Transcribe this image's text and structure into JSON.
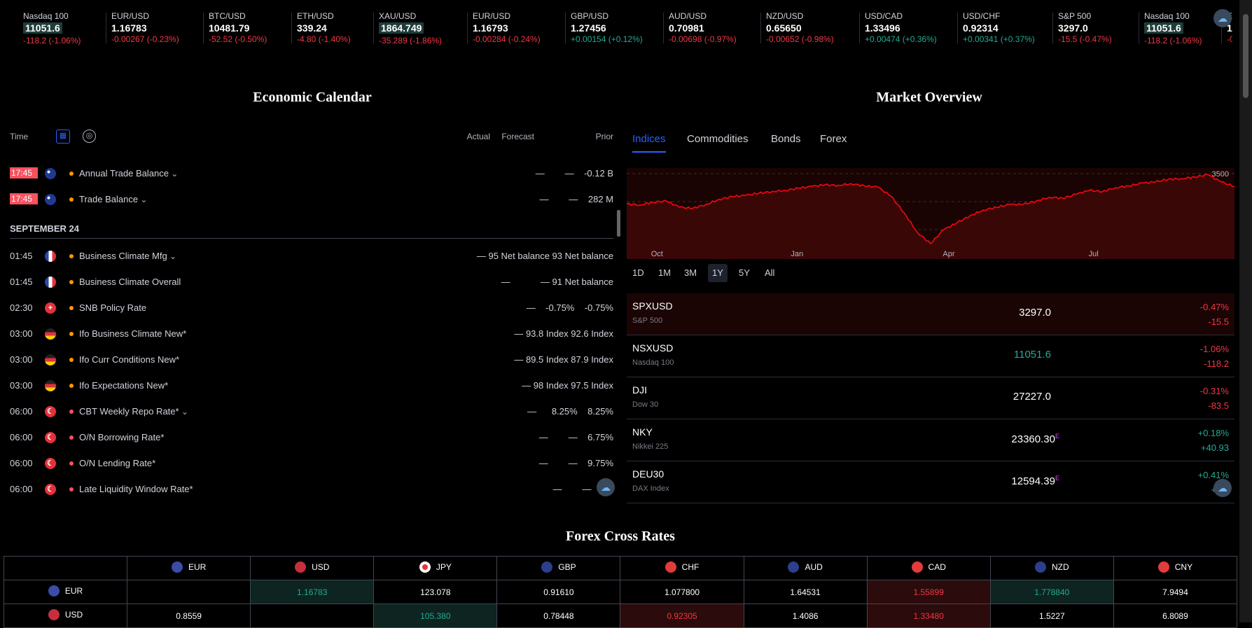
{
  "ticker": [
    {
      "sym": "Nasdaq 100",
      "price": "11051.6",
      "chg": "-118.2 (-1.06%)",
      "dir": "neg",
      "hl": true
    },
    {
      "sym": "EUR/USD",
      "price": "1.16783",
      "chg": "-0.00267 (-0.23%)",
      "dir": "neg",
      "hl": false
    },
    {
      "sym": "BTC/USD",
      "price": "10481.79",
      "chg": "-52.52 (-0.50%)",
      "dir": "neg",
      "hl": false
    },
    {
      "sym": "ETH/USD",
      "price": "339.24",
      "chg": "-4.80 (-1.40%)",
      "dir": "neg",
      "hl": false
    },
    {
      "sym": "XAU/USD",
      "price": "1864.749",
      "chg": "-35.289 (-1.86%)",
      "dir": "neg",
      "hl": true
    },
    {
      "sym": "EUR/USD",
      "price": "1.16793",
      "chg": "-0.00284 (-0.24%)",
      "dir": "neg",
      "hl": false
    },
    {
      "sym": "GBP/USD",
      "price": "1.27456",
      "chg": "+0.00154 (+0.12%)",
      "dir": "pos",
      "hl": false
    },
    {
      "sym": "AUD/USD",
      "price": "0.70981",
      "chg": "-0.00698 (-0.97%)",
      "dir": "neg",
      "hl": false
    },
    {
      "sym": "NZD/USD",
      "price": "0.65650",
      "chg": "-0.00652 (-0.98%)",
      "dir": "neg",
      "hl": false
    },
    {
      "sym": "USD/CAD",
      "price": "1.33496",
      "chg": "+0.00474 (+0.36%)",
      "dir": "pos",
      "hl": false
    },
    {
      "sym": "USD/CHF",
      "price": "0.92314",
      "chg": "+0.00341 (+0.37%)",
      "dir": "pos",
      "hl": false
    },
    {
      "sym": "S&P 500",
      "price": "3297.0",
      "chg": "-15.5 (-0.47%)",
      "dir": "neg",
      "hl": false
    },
    {
      "sym": "Nasdaq 100",
      "price": "11051.6",
      "chg": "-118.2 (-1.06%)",
      "dir": "neg",
      "hl": true
    },
    {
      "sym": "EU",
      "price": "1.",
      "chg": "-0.",
      "dir": "neg",
      "hl": false
    }
  ],
  "economic_calendar": {
    "title": "Economic Calendar",
    "col_time": "Time",
    "col_actual": "Actual",
    "col_forecast": "Forecast",
    "col_prior": "Prior",
    "rows_today": [
      {
        "time": "17:45",
        "flag": "au",
        "title": "Annual Trade Balance",
        "chev": true,
        "vals": "—        —    -0.12 B"
      },
      {
        "time": "17:45",
        "flag": "au",
        "title": "Trade Balance",
        "chev": true,
        "vals": "—        —    282 M"
      }
    ],
    "date_label": "SEPTEMBER 24",
    "rows": [
      {
        "time": "01:45",
        "flag": "fr",
        "title": "Business Climate Mfg",
        "chev": true,
        "vals": "— 95 Net balance 93 Net balance"
      },
      {
        "time": "01:45",
        "flag": "fr",
        "title": "Business Climate Overall",
        "chev": false,
        "vals": "—            — 91 Net balance"
      },
      {
        "time": "02:30",
        "flag": "ch",
        "title": "SNB Policy Rate",
        "chev": false,
        "vals": "—    -0.75%    -0.75%"
      },
      {
        "time": "03:00",
        "flag": "de",
        "title": "Ifo Business Climate New*",
        "chev": false,
        "vals": "— 93.8 Index 92.6 Index"
      },
      {
        "time": "03:00",
        "flag": "de",
        "title": "Ifo Curr Conditions New*",
        "chev": false,
        "vals": "— 89.5 Index 87.9 Index"
      },
      {
        "time": "03:00",
        "flag": "de",
        "title": "Ifo Expectations New*",
        "chev": false,
        "vals": "— 98 Index 97.5 Index"
      },
      {
        "time": "06:00",
        "flag": "tr",
        "title": "CBT Weekly Repo Rate*",
        "chev": true,
        "vals": "—      8.25%    8.25%"
      },
      {
        "time": "06:00",
        "flag": "tr",
        "title": "O/N Borrowing Rate*",
        "chev": false,
        "vals": "—        —    6.75%"
      },
      {
        "time": "06:00",
        "flag": "tr",
        "title": "O/N Lending Rate*",
        "chev": false,
        "vals": "—        —    9.75%"
      },
      {
        "time": "06:00",
        "flag": "tr",
        "title": "Late Liquidity Window Rate*",
        "chev": false,
        "vals": "—        —    11."
      }
    ]
  },
  "market_overview": {
    "title": "Market Overview",
    "tabs": [
      "Indices",
      "Commodities",
      "Bonds",
      "Forex"
    ],
    "active_tab": "Indices",
    "chart_data": {
      "type": "area",
      "x_ticks": [
        "Oct",
        "Jan",
        "Apr",
        "Jul"
      ],
      "y_ticks": [
        3500,
        3000,
        2500
      ],
      "ylim": [
        2200,
        3600
      ],
      "values": [
        2960,
        2940,
        2990,
        3010,
        2900,
        2880,
        2950,
        3040,
        3090,
        3110,
        3150,
        3180,
        3200,
        3240,
        3270,
        3300,
        3290,
        3320,
        3280,
        3260,
        3100,
        2800,
        2450,
        2250,
        2500,
        2620,
        2750,
        2850,
        2900,
        2950,
        2950,
        3010,
        3080,
        3060,
        3130,
        3200,
        3180,
        3250,
        3280,
        3330,
        3350,
        3400,
        3410,
        3440,
        3480,
        3350,
        3270
      ],
      "series_color": "#f7070f"
    },
    "ranges": [
      "1D",
      "1M",
      "3M",
      "1Y",
      "5Y",
      "All"
    ],
    "active_range": "1Y",
    "rows": [
      {
        "sym": "SPXUSD",
        "desc": "S&P 500",
        "last": "3297.0",
        "last_dir": "flat",
        "pct": "-0.47%",
        "abs": "-15.5",
        "dir": "neg",
        "e": ""
      },
      {
        "sym": "NSXUSD",
        "desc": "Nasdaq 100",
        "last": "11051.6",
        "last_dir": "pos",
        "pct": "-1.06%",
        "abs": "-118.2",
        "dir": "neg",
        "e": ""
      },
      {
        "sym": "DJI",
        "desc": "Dow 30",
        "last": "27227.0",
        "last_dir": "flat",
        "pct": "-0.31%",
        "abs": "-83.5",
        "dir": "neg",
        "e": ""
      },
      {
        "sym": "NKY",
        "desc": "Nikkei 225",
        "last": "23360.30",
        "last_dir": "flat",
        "pct": "+0.18%",
        "abs": "+40.93",
        "dir": "pos",
        "e": "E"
      },
      {
        "sym": "DEU30",
        "desc": "DAX Index",
        "last": "12594.39",
        "last_dir": "flat",
        "pct": "+0.41%",
        "abs": "+51.",
        "dir": "pos",
        "e": "E"
      }
    ]
  },
  "forex_cross_rates": {
    "title": "Forex Cross Rates",
    "currencies": [
      {
        "code": "EUR",
        "color": "#3b4ca8"
      },
      {
        "code": "USD",
        "color": "#c62f3b"
      },
      {
        "code": "JPY",
        "color": "#ffffff"
      },
      {
        "code": "GBP",
        "color": "#2b3f8c"
      },
      {
        "code": "CHF",
        "color": "#e23b3b"
      },
      {
        "code": "AUD",
        "color": "#2b3f8c"
      },
      {
        "code": "CAD",
        "color": "#e23b3b"
      },
      {
        "code": "NZD",
        "color": "#2b3f8c"
      },
      {
        "code": "CNY",
        "color": "#e23b3b"
      }
    ],
    "rows": [
      {
        "code": "EUR",
        "cells": [
          {
            "v": "",
            "c": ""
          },
          {
            "v": "1.16783",
            "c": "up"
          },
          {
            "v": "123.078",
            "c": ""
          },
          {
            "v": "0.91610",
            "c": ""
          },
          {
            "v": "1.077800",
            "c": ""
          },
          {
            "v": "1.64531",
            "c": ""
          },
          {
            "v": "1.55899",
            "c": "down"
          },
          {
            "v": "1.778840",
            "c": "up"
          },
          {
            "v": "7.9494",
            "c": ""
          }
        ]
      },
      {
        "code": "USD",
        "cells": [
          {
            "v": "0.8559",
            "c": ""
          },
          {
            "v": "",
            "c": ""
          },
          {
            "v": "105.380",
            "c": "up"
          },
          {
            "v": "0.78448",
            "c": ""
          },
          {
            "v": "0.92305",
            "c": "down"
          },
          {
            "v": "1.4086",
            "c": ""
          },
          {
            "v": "1.33480",
            "c": "down"
          },
          {
            "v": "1.5227",
            "c": ""
          },
          {
            "v": "6.8089",
            "c": ""
          }
        ]
      }
    ]
  }
}
